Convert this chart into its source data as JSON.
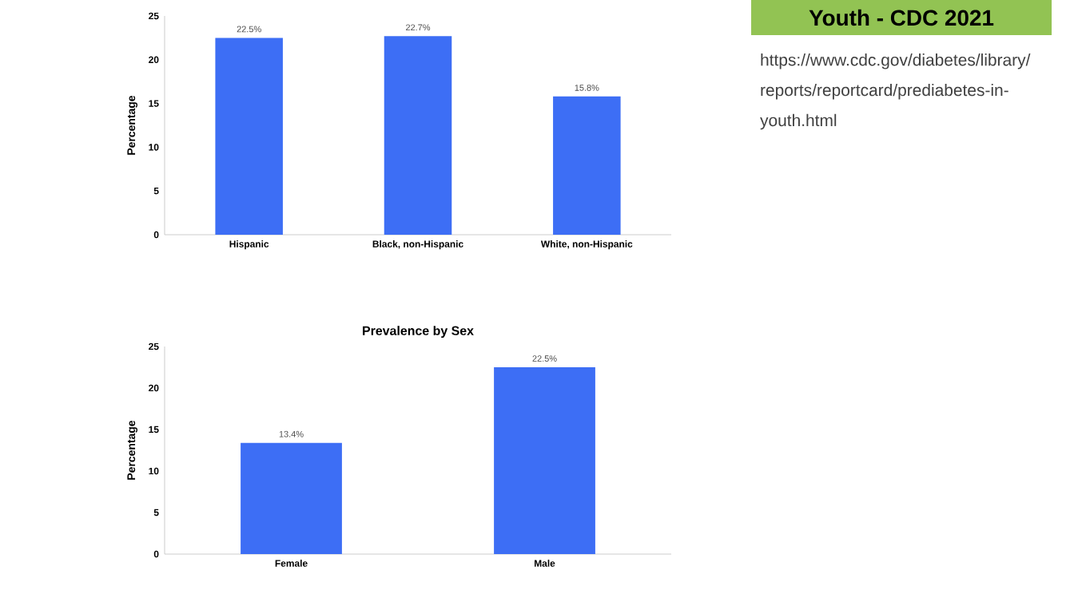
{
  "chart_data": [
    {
      "type": "bar",
      "ylabel": "Percentage",
      "categories": [
        "Hispanic",
        "Black, non-Hispanic",
        "White, non-Hispanic"
      ],
      "values": [
        22.5,
        22.7,
        15.8
      ],
      "value_labels": [
        "22.5%",
        "22.7%",
        "15.8%"
      ],
      "color": "#3d6ef5",
      "ylim": [
        0,
        25
      ],
      "yticks": [
        0,
        5,
        10,
        15,
        20,
        25
      ]
    },
    {
      "type": "bar",
      "title": "Prevalence by Sex",
      "ylabel": "Percentage",
      "categories": [
        "Female",
        "Male"
      ],
      "values": [
        13.4,
        22.5
      ],
      "value_labels": [
        "13.4%",
        "22.5%"
      ],
      "color": "#3d6ef5",
      "ylim": [
        0,
        25
      ],
      "yticks": [
        0,
        5,
        10,
        15,
        20,
        25
      ]
    },
    {
      "type": "other",
      "title": "Youth - CDC 2021",
      "annotations": [
        "https://www.cdc.gov/diabetes/library/reports/reportcard/prediabetes-in-youth.html"
      ]
    }
  ]
}
